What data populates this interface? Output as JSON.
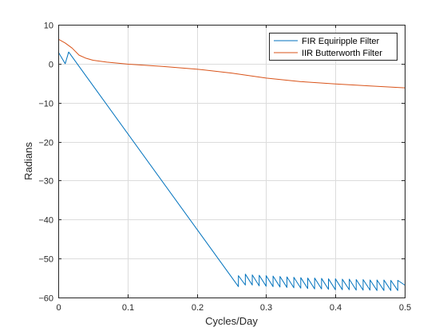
{
  "chart_data": {
    "type": "line",
    "title": "",
    "xlabel": "Cycles/Day",
    "ylabel": "Radians",
    "xlim": [
      0,
      0.5
    ],
    "ylim": [
      -60,
      10
    ],
    "xticks": [
      "0",
      "0.1",
      "0.2",
      "0.3",
      "0.4",
      "0.5"
    ],
    "yticks": [
      "-60",
      "-50",
      "-40",
      "-30",
      "-20",
      "-10",
      "0",
      "10"
    ],
    "grid": true,
    "legend_location": "top-right",
    "series": [
      {
        "name": "FIR Equiripple Filter",
        "color": "#0072BD",
        "x": [
          0,
          0.01,
          0.015,
          0.26,
          0.26,
          0.27,
          0.27,
          0.28,
          0.28,
          0.29,
          0.29,
          0.3,
          0.3,
          0.31,
          0.31,
          0.32,
          0.32,
          0.33,
          0.33,
          0.34,
          0.34,
          0.35,
          0.35,
          0.36,
          0.36,
          0.37,
          0.37,
          0.38,
          0.38,
          0.39,
          0.39,
          0.4,
          0.4,
          0.41,
          0.41,
          0.42,
          0.42,
          0.43,
          0.43,
          0.44,
          0.44,
          0.45,
          0.45,
          0.46,
          0.46,
          0.47,
          0.47,
          0.48,
          0.48,
          0.49,
          0.49,
          0.5
        ],
        "values": [
          3,
          0,
          3,
          -57.2,
          -54.4,
          -56.8,
          -54.0,
          -56.8,
          -54.2,
          -57.0,
          -54.3,
          -57.1,
          -54.4,
          -57.2,
          -54.5,
          -57.3,
          -54.6,
          -57.4,
          -54.7,
          -57.5,
          -54.8,
          -57.6,
          -54.9,
          -57.7,
          -55.0,
          -57.8,
          -55.0,
          -57.8,
          -55.1,
          -57.9,
          -55.2,
          -58.0,
          -55.2,
          -58.0,
          -55.3,
          -58.0,
          -55.3,
          -58.1,
          -55.4,
          -58.1,
          -55.4,
          -58.1,
          -55.5,
          -58.2,
          -55.5,
          -58.2,
          -55.5,
          -58.2,
          -55.6,
          -58.2,
          -55.6,
          -56.8
        ]
      },
      {
        "name": "IIR Butterworth Filter",
        "color": "#D95319",
        "x": [
          0,
          0.01,
          0.02,
          0.03,
          0.04,
          0.05,
          0.07,
          0.1,
          0.15,
          0.2,
          0.25,
          0.3,
          0.35,
          0.4,
          0.45,
          0.5
        ],
        "values": [
          6.3,
          5.3,
          4.0,
          2.2,
          1.4,
          0.9,
          0.4,
          -0.1,
          -0.7,
          -1.4,
          -2.4,
          -3.7,
          -4.6,
          -5.2,
          -5.7,
          -6.2
        ]
      }
    ]
  }
}
